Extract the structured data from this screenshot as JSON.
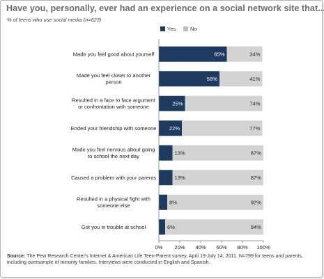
{
  "title": "Have you, personally, ever had an experience on a social network site that...",
  "subtitle": "% of teens who use social media (n=623)",
  "source_label": "Source:",
  "source_text": "The Pew Research Center's Internet & American Life Teen-Parent survey, April 19-July 14, 2011. N=799 for teens and parents, including oversample of minority families. Interviews were conducted in English and Spanish.",
  "colors": {
    "yes": "#1f3a5f",
    "no": "#d3d3d3",
    "title": "#6b6b6b"
  },
  "chart_data": {
    "type": "bar",
    "orientation": "horizontal",
    "stacked": true,
    "title": "Have you, personally, ever had an experience on a social network site that...",
    "subtitle": "% of teens who use social media (n=623)",
    "legend": {
      "placement": "top",
      "entries": [
        "Yes",
        "No"
      ]
    },
    "categories": [
      [
        "Made you feel good about yourself"
      ],
      [
        "Made you feel closer to another",
        "person"
      ],
      [
        "Resulted in a face to face argument",
        "or confrontation with someone"
      ],
      [
        "Ended your friendship with someone"
      ],
      [
        "Made you feel nervous about going",
        "to school the next day"
      ],
      [
        "Caused a problem with your parents"
      ],
      [
        "Resulted in a physical fight with",
        "someone else"
      ],
      [
        "Got you in trouble at school"
      ]
    ],
    "series": [
      {
        "name": "Yes",
        "values": [
          65,
          58,
          25,
          22,
          13,
          13,
          8,
          6
        ],
        "labels": [
          "65%",
          "58%",
          "25%",
          "22%",
          "13%",
          "13%",
          "8%",
          "6%"
        ]
      },
      {
        "name": "No",
        "values": [
          34,
          41,
          74,
          77,
          87,
          87,
          92,
          94
        ],
        "labels": [
          "34%",
          "41%",
          "74%",
          "77%",
          "87%",
          "87%",
          "92%",
          "94%"
        ]
      }
    ],
    "xlim": [
      0,
      100
    ],
    "xticks": [
      "0%",
      "20%",
      "40%",
      "60%",
      "80%",
      "100%"
    ],
    "grid": false
  }
}
